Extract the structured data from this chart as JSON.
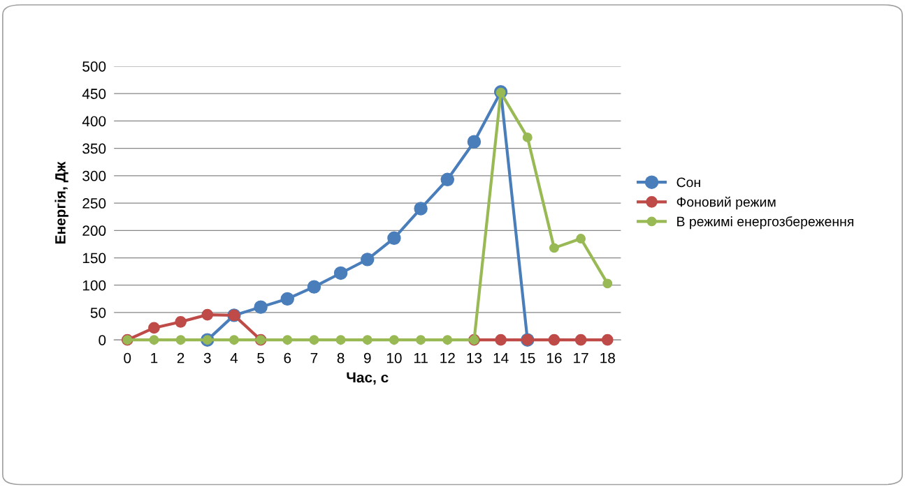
{
  "chart_data": {
    "type": "line",
    "xlabel": "Час, с",
    "ylabel": "Енергія, Дж",
    "categories": [
      "0",
      "1",
      "2",
      "3",
      "4",
      "5",
      "6",
      "7",
      "8",
      "9",
      "10",
      "11",
      "12",
      "13",
      "14",
      "15",
      "16",
      "17",
      "18"
    ],
    "series": [
      {
        "name": "Сон",
        "color": "#4a7ebb",
        "values": [
          null,
          null,
          null,
          0,
          45,
          60,
          75,
          97,
          122,
          147,
          186,
          240,
          293,
          362,
          453,
          0,
          null,
          null,
          null
        ]
      },
      {
        "name": "Фоновий режим",
        "color": "#be4b48",
        "values": [
          0,
          22,
          33,
          46,
          45,
          0,
          null,
          null,
          null,
          null,
          null,
          null,
          null,
          0,
          0,
          0,
          0,
          0,
          0
        ]
      },
      {
        "name": "В режимі енергозбереження",
        "color": "#98b954",
        "values": [
          0,
          0,
          0,
          0,
          0,
          0,
          0,
          0,
          0,
          0,
          0,
          0,
          0,
          0,
          452,
          370,
          168,
          185,
          103
        ]
      }
    ],
    "ylim": [
      0,
      500
    ],
    "yticks": [
      0,
      50,
      100,
      150,
      200,
      250,
      300,
      350,
      400,
      450,
      500
    ],
    "grid": "y",
    "legend": "right",
    "marker": "circle",
    "line_style": "solid"
  }
}
